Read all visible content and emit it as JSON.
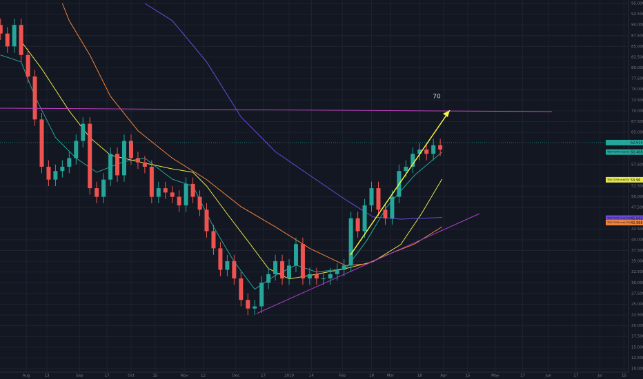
{
  "chart_data": {
    "type": "candlestick",
    "up_color": "#26a69a",
    "down_color": "#ef5350",
    "grid": true,
    "xlim": [
      -15.3,
      350.2
    ],
    "ylim": [
      9.2,
      95.8
    ],
    "last_price": 62.614,
    "last_price_color": "#26a69a",
    "annotations": [
      {
        "text": "70"
      }
    ],
    "xticks": [
      {
        "value": 0,
        "label": "Aug"
      },
      {
        "value": 12,
        "label": "13"
      },
      {
        "value": 31,
        "label": "Sep"
      },
      {
        "value": 47,
        "label": "17"
      },
      {
        "value": 61,
        "label": "Oct"
      },
      {
        "value": 75,
        "label": "15"
      },
      {
        "value": 92,
        "label": "Nov"
      },
      {
        "value": 103,
        "label": "12"
      },
      {
        "value": 122,
        "label": "Dec"
      },
      {
        "value": 138,
        "label": "17"
      },
      {
        "value": 153,
        "label": "2019"
      },
      {
        "value": 166,
        "label": "14"
      },
      {
        "value": 184,
        "label": "Feb"
      },
      {
        "value": 201,
        "label": "18"
      },
      {
        "value": 212,
        "label": "Mar"
      },
      {
        "value": 229,
        "label": "18"
      },
      {
        "value": 243,
        "label": "Apr"
      },
      {
        "value": 257,
        "label": "15"
      },
      {
        "value": 273,
        "label": "May"
      },
      {
        "value": 289,
        "label": "17"
      },
      {
        "value": 304,
        "label": "Jun"
      },
      {
        "value": 320,
        "label": "17"
      },
      {
        "value": 334,
        "label": "Jul"
      },
      {
        "value": 348,
        "label": "15"
      }
    ],
    "yticks": [
      {
        "value": 95,
        "label": "95.000"
      },
      {
        "value": 92.5,
        "label": "92.500"
      },
      {
        "value": 90,
        "label": "90.000"
      },
      {
        "value": 87.5,
        "label": "87.500"
      },
      {
        "value": 85,
        "label": "85.000"
      },
      {
        "value": 82.5,
        "label": "82.500"
      },
      {
        "value": 80,
        "label": "80.000"
      },
      {
        "value": 77.5,
        "label": "77.500"
      },
      {
        "value": 75,
        "label": "75.000"
      },
      {
        "value": 72.5,
        "label": "72.500"
      },
      {
        "value": 70,
        "label": "70.000"
      },
      {
        "value": 67.5,
        "label": "67.500"
      },
      {
        "value": 65,
        "label": "65.000"
      },
      {
        "value": 57.5,
        "label": "57.500"
      },
      {
        "value": 52.5,
        "label": "52.500"
      },
      {
        "value": 50,
        "label": "50.000"
      },
      {
        "value": 47.5,
        "label": "47.500"
      },
      {
        "value": 42.5,
        "label": "42.500"
      },
      {
        "value": 40,
        "label": "40.000"
      },
      {
        "value": 37.5,
        "label": "37.500"
      },
      {
        "value": 35,
        "label": "35.000"
      },
      {
        "value": 32.5,
        "label": "32.500"
      },
      {
        "value": 30,
        "label": "30.000"
      },
      {
        "value": 27.5,
        "label": "27.500"
      },
      {
        "value": 25,
        "label": "25.000"
      },
      {
        "value": 22.5,
        "label": "22.500"
      },
      {
        "value": 20,
        "label": "20.000"
      },
      {
        "value": 17.5,
        "label": "17.500"
      },
      {
        "value": 15,
        "label": "15.000"
      },
      {
        "value": 12.5,
        "label": "12.500"
      },
      {
        "value": 10,
        "label": "10.000"
      }
    ],
    "x": [
      -15,
      -11,
      -7,
      -3,
      1,
      5,
      9,
      13,
      17,
      21,
      25,
      29,
      33,
      37,
      41,
      45,
      49,
      53,
      57,
      61,
      65,
      69,
      73,
      77,
      81,
      85,
      89,
      93,
      97,
      101,
      105,
      109,
      113,
      117,
      121,
      125,
      129,
      133,
      137,
      141,
      145,
      149,
      153,
      157,
      161,
      165,
      169,
      173,
      177,
      181,
      185,
      189,
      193,
      197,
      201,
      205,
      209,
      213,
      217,
      221,
      225,
      229,
      233,
      237,
      241
    ],
    "open": [
      90,
      88,
      85,
      90,
      83,
      78,
      68,
      57,
      54,
      56,
      57,
      59,
      63,
      67,
      52,
      50,
      54,
      60,
      55,
      63,
      59,
      58,
      57,
      50,
      52,
      51,
      50,
      48,
      53,
      50,
      47,
      42,
      38,
      33,
      35,
      31,
      26,
      24,
      24.5,
      30,
      32,
      35,
      31,
      34,
      39,
      31,
      32,
      31,
      31,
      32,
      33,
      34,
      45,
      42,
      48,
      52,
      47,
      45,
      50,
      56,
      57,
      60,
      61,
      60,
      62
    ],
    "high": [
      91.5,
      89.5,
      91.5,
      91.5,
      84.5,
      79.5,
      69.5,
      58.5,
      57.5,
      58.5,
      60.5,
      64.5,
      68.5,
      68.5,
      53.5,
      55.5,
      61.5,
      61.5,
      64.5,
      64.5,
      60.5,
      59.5,
      58.5,
      53.5,
      53.5,
      52.5,
      51.5,
      54.5,
      54.5,
      51.5,
      48.5,
      43.5,
      39.5,
      36.5,
      36.5,
      32.5,
      27.5,
      26,
      31.5,
      33.5,
      36.5,
      36.5,
      35.5,
      40.5,
      40.5,
      33.5,
      33.5,
      32.5,
      33.5,
      34.5,
      35.5,
      46.5,
      46.5,
      49.5,
      53.5,
      53.5,
      48.5,
      51.5,
      57.5,
      58.5,
      61.5,
      62.5,
      62.5,
      63.5,
      63.5
    ],
    "low": [
      86.5,
      83.5,
      83.5,
      81.5,
      76.5,
      66.5,
      55.5,
      52.5,
      52.5,
      54.5,
      55.5,
      57.5,
      61.5,
      50.5,
      48.5,
      48.5,
      52.5,
      53.5,
      53.5,
      57.5,
      56.5,
      55.5,
      48.5,
      48.5,
      49.5,
      48.5,
      46.5,
      46.5,
      48.5,
      45.5,
      40.5,
      36.5,
      31.5,
      31.5,
      29.5,
      24.5,
      22.5,
      22.5,
      23,
      28.5,
      30.5,
      29.5,
      29.5,
      32.5,
      29.5,
      29.5,
      29.5,
      29.5,
      29.5,
      30.5,
      31.5,
      32.5,
      40.5,
      40.5,
      46.5,
      45.5,
      43.5,
      43.5,
      48.5,
      54.5,
      55.5,
      58.5,
      58.5,
      58.5,
      59.5
    ],
    "close": [
      88,
      85,
      90,
      83,
      78,
      68,
      57,
      54,
      56,
      57,
      59,
      63,
      67,
      52,
      50,
      54,
      60,
      55,
      63,
      59,
      58,
      57,
      50,
      52,
      51,
      50,
      48,
      53,
      50,
      47,
      42,
      38,
      33,
      35,
      31,
      26,
      24,
      24.5,
      30,
      32,
      35,
      31,
      34,
      39,
      31,
      32,
      31,
      31,
      32,
      33,
      34,
      45,
      42,
      48,
      52,
      47,
      45,
      50,
      56,
      57,
      60,
      61,
      60,
      62,
      61
    ],
    "series": [
      {
        "name": "TBX-TCMA ma(20)",
        "color": "#26a69a",
        "last_value": 60.408,
        "x": [
          -15,
          -3,
          5,
          17,
          29,
          41,
          57,
          69,
          85,
          97,
          109,
          121,
          133,
          145,
          157,
          169,
          186,
          198,
          210,
          226,
          242
        ],
        "values": [
          83,
          81.4,
          73.4,
          63.8,
          59,
          55.7,
          58.2,
          59,
          54.1,
          52.5,
          43,
          34.9,
          28.5,
          31.7,
          34.1,
          32.5,
          33.3,
          39.7,
          47.7,
          55,
          60.4
        ]
      },
      {
        "name": "TBX-TCMA ma(50)",
        "color": "#e6e64a",
        "last_value": 53.96,
        "x": [
          -3,
          9,
          25,
          37,
          49,
          65,
          85,
          97,
          105,
          117,
          129,
          141,
          153,
          165,
          186,
          202,
          218,
          230,
          242
        ],
        "values": [
          86.2,
          79.8,
          70,
          63.8,
          59.7,
          58.2,
          56.5,
          55.7,
          52.5,
          46,
          39.7,
          33.3,
          30.9,
          31.7,
          33.3,
          34.9,
          38.9,
          46,
          54.1
        ]
      },
      {
        "name": "TBX-TCMA ma(200)",
        "color": "#6a4cd9",
        "last_value": 45.043,
        "x": [
          69,
          85,
          105,
          125,
          145,
          165,
          186,
          202,
          218,
          242
        ],
        "values": [
          95,
          91,
          81.4,
          68.6,
          60.5,
          55,
          49.3,
          45.3,
          44.8,
          45.2
        ]
      },
      {
        "name": "TBX-TCMA ma(100)",
        "color": "#f0843c",
        "last_value": 43.988,
        "x": [
          21,
          25,
          37,
          49,
          65,
          85,
          105,
          125,
          145,
          165,
          186,
          198,
          210,
          226,
          242
        ],
        "values": [
          95,
          91,
          83,
          73.4,
          65.4,
          59,
          54,
          47.7,
          43,
          38,
          34,
          34.4,
          36.5,
          39,
          43
        ]
      }
    ]
  }
}
